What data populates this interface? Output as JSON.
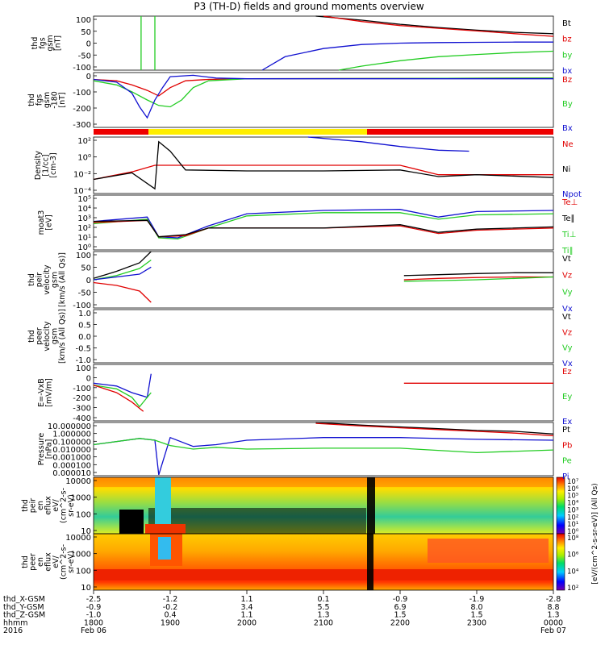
{
  "title": "P3 (TH-D) fields and ground moments overview",
  "colors": {
    "black": "#000000",
    "red": "#e00000",
    "green": "#22cc22",
    "blue": "#1010d0",
    "yellow": "#ffee00",
    "barred": "#ee0000"
  },
  "time_axis": {
    "label_lines": [
      "thd_X-GSM",
      "thd_Y-GSM",
      "thd_Z-GSM",
      "hhmm",
      "2016"
    ],
    "ticks": [
      {
        "t": "1800",
        "x": "-2.5",
        "y": "-0.9",
        "z": "-1.0",
        "date": "Feb 06"
      },
      {
        "t": "1900",
        "x": "-1.2",
        "y": "-0.2",
        "z": "0.4",
        "date": ""
      },
      {
        "t": "2000",
        "x": "1.1",
        "y": "3.4",
        "z": "1.1",
        "date": ""
      },
      {
        "t": "2100",
        "x": "0.1",
        "y": "5.5",
        "z": "1.3",
        "date": ""
      },
      {
        "t": "2200",
        "x": "-0.9",
        "y": "6.9",
        "z": "1.5",
        "date": ""
      },
      {
        "t": "2300",
        "x": "-1.9",
        "y": "8.0",
        "z": "1.5",
        "date": ""
      },
      {
        "t": "0000",
        "x": "-2.8",
        "y": "8.8",
        "z": "1.3",
        "date": "Feb 07"
      }
    ]
  },
  "chart_data": [
    {
      "type": "line",
      "id": "fgs_gsm",
      "ylabel": [
        "thd",
        "fgs",
        "gsm",
        "[nT]"
      ],
      "ylim": [
        -100,
        100
      ],
      "yticks": [
        "100",
        "50",
        "0",
        "-50",
        "-100"
      ],
      "legend": [
        {
          "name": "Bt",
          "color": "black"
        },
        {
          "name": "bz",
          "color": "red"
        },
        {
          "name": "by",
          "color": "green"
        },
        {
          "name": "bx",
          "color": "blue"
        }
      ],
      "series": [
        {
          "name": "Bt",
          "color": "black",
          "x": [
            20.9,
            21.5,
            22.0,
            22.5,
            23.0,
            23.5,
            24.0
          ],
          "y": [
            100,
            85,
            70,
            58,
            48,
            40,
            35
          ]
        },
        {
          "name": "bz",
          "color": "red",
          "x": [
            21.0,
            21.5,
            22.0,
            22.5,
            23.0,
            23.5,
            24.0
          ],
          "y": [
            100,
            80,
            65,
            55,
            45,
            35,
            25
          ]
        },
        {
          "name": "bx",
          "color": "blue",
          "x": [
            20.2,
            20.5,
            21.0,
            21.5,
            22.0,
            22.5,
            23.0,
            23.5,
            24.0
          ],
          "y": [
            -100,
            -50,
            -20,
            -5,
            0,
            2,
            3,
            4,
            4
          ]
        },
        {
          "name": "by",
          "color": "green",
          "x": [
            18.62,
            18.62,
            18.62
          ],
          "y": [
            -100,
            100,
            -100
          ]
        },
        {
          "name": "by2",
          "color": "green",
          "x": [
            18.8,
            18.8,
            18.8
          ],
          "y": [
            -100,
            100,
            -100
          ]
        },
        {
          "name": "by3",
          "color": "green",
          "x": [
            21.2,
            21.5,
            22.0,
            22.5,
            23.0,
            23.5,
            24.0
          ],
          "y": [
            -100,
            -85,
            -65,
            -50,
            -42,
            -35,
            -30
          ]
        }
      ]
    },
    {
      "type": "line",
      "id": "fgs_gsm_zoom",
      "ylabel": [
        "thd",
        "fgs",
        "gsm",
        "-180",
        "[nT]"
      ],
      "ylim": [
        -350,
        50
      ],
      "yticks": [
        "0",
        "-100",
        "-200",
        "-300"
      ],
      "legend": [
        {
          "name": "Bz",
          "color": "red"
        },
        {
          "name": "By",
          "color": "green"
        },
        {
          "name": "Bx",
          "color": "blue"
        }
      ],
      "series": [
        {
          "name": "Bz",
          "color": "red",
          "x": [
            18.0,
            18.3,
            18.5,
            18.7,
            18.85,
            19.0,
            19.2,
            19.5,
            20.0,
            24.0
          ],
          "y": [
            0,
            -10,
            -40,
            -80,
            -120,
            -60,
            -10,
            0,
            5,
            10
          ]
        },
        {
          "name": "By",
          "color": "green",
          "x": [
            18.0,
            18.3,
            18.5,
            18.7,
            18.85,
            19.0,
            19.15,
            19.3,
            19.5,
            20.0,
            24.0
          ],
          "y": [
            -10,
            -40,
            -90,
            -150,
            -190,
            -200,
            -150,
            -60,
            -10,
            5,
            10
          ]
        },
        {
          "name": "Bx",
          "color": "blue",
          "x": [
            18.0,
            18.3,
            18.5,
            18.6,
            18.7,
            18.8,
            18.9,
            19.0,
            19.3,
            19.6,
            20.0,
            24.0
          ],
          "y": [
            0,
            -20,
            -100,
            -200,
            -280,
            -150,
            -60,
            20,
            30,
            10,
            5,
            5
          ]
        }
      ]
    },
    {
      "type": "line",
      "id": "density",
      "ylabel": [
        "Density",
        "[1/cc]",
        "[cm-3]"
      ],
      "ylim": [
        -3,
        3
      ],
      "log": true,
      "yticks": [
        "10²",
        "10⁰",
        "10⁻²",
        "10⁻⁴"
      ],
      "legend": [
        {
          "name": "Ne",
          "color": "red"
        },
        {
          "name": "Ni",
          "color": "black"
        },
        {
          "name": "Npot",
          "color": "blue"
        }
      ],
      "series": [
        {
          "name": "Ne",
          "color": "red",
          "x": [
            18.0,
            18.5,
            18.8,
            19.0,
            20.0,
            21.0,
            22.0,
            22.5,
            23.0,
            24.0
          ],
          "y": [
            -1.5,
            -0.7,
            0,
            0,
            0,
            0,
            0,
            -1,
            -1,
            -1
          ]
        },
        {
          "name": "Ni",
          "color": "black",
          "x": [
            18.0,
            18.5,
            18.8,
            18.85,
            19.0,
            19.2,
            20.0,
            21.0,
            22.0,
            22.5,
            23.0,
            24.0
          ],
          "y": [
            -1.5,
            -0.8,
            -2.5,
            2.5,
            1.5,
            -0.5,
            -0.6,
            -0.6,
            -0.5,
            -1.2,
            -1.0,
            -1.3
          ]
        },
        {
          "name": "Npot",
          "color": "blue",
          "x": [
            20.8,
            21.5,
            22.0,
            22.5,
            22.9
          ],
          "y": [
            3,
            2.5,
            2.0,
            1.6,
            1.5
          ]
        }
      ]
    },
    {
      "type": "line",
      "id": "temperature",
      "ylabel": [
        "moat3",
        "[eV]"
      ],
      "ylim": [
        0,
        5
      ],
      "log": true,
      "yticks": [
        "10⁵",
        "10⁴",
        "10³",
        "10²",
        "10¹",
        "10⁰"
      ],
      "legend": [
        {
          "name": "Te⊥",
          "color": "red"
        },
        {
          "name": "Te∥",
          "color": "black"
        },
        {
          "name": "Ti⊥",
          "color": "green"
        },
        {
          "name": "Ti∥",
          "color": "green"
        }
      ],
      "series": [
        {
          "name": "Ti⊥",
          "color": "blue",
          "x": [
            18.0,
            18.7,
            18.85,
            19.1,
            19.5,
            20.0,
            21.0,
            22.0,
            22.5,
            23.0,
            24.0
          ],
          "y": [
            2.6,
            3.0,
            1.2,
            1.1,
            2.2,
            3.3,
            3.6,
            3.7,
            3.0,
            3.5,
            3.6
          ]
        },
        {
          "name": "Ti∥",
          "color": "green",
          "x": [
            18.0,
            18.7,
            18.85,
            19.1,
            19.5,
            20.0,
            21.0,
            22.0,
            22.5,
            23.0,
            24.0
          ],
          "y": [
            2.4,
            2.8,
            1.1,
            1.0,
            2.0,
            3.1,
            3.4,
            3.4,
            2.8,
            3.2,
            3.3
          ]
        },
        {
          "name": "Te⊥",
          "color": "red",
          "x": [
            18.0,
            18.7,
            18.85,
            19.2,
            19.5,
            20.0,
            21.0,
            22.0,
            22.5,
            23.0,
            24.0
          ],
          "y": [
            2.5,
            2.7,
            1.2,
            1.3,
            2.0,
            2.0,
            2.0,
            2.2,
            1.5,
            1.8,
            2.0
          ]
        },
        {
          "name": "Te∥",
          "color": "black",
          "x": [
            18.0,
            18.7,
            18.85,
            19.2,
            19.5,
            20.0,
            21.0,
            22.0,
            22.5,
            23.0,
            24.0
          ],
          "y": [
            2.6,
            2.7,
            1.2,
            1.4,
            2.0,
            2.0,
            2.0,
            2.3,
            1.6,
            1.9,
            2.1
          ]
        }
      ]
    },
    {
      "type": "line",
      "id": "peir_velocity",
      "ylabel": [
        "thd",
        "peir",
        "velocity",
        "gsm",
        "[km/s (All Qs)]"
      ],
      "ylim": [
        -100,
        100
      ],
      "yticks": [
        "100",
        "50",
        "0",
        "-50",
        "-100"
      ],
      "legend": [
        {
          "name": "Vt",
          "color": "black"
        },
        {
          "name": "Vz",
          "color": "red"
        },
        {
          "name": "Vy",
          "color": "green"
        },
        {
          "name": "Vx",
          "color": "blue"
        }
      ],
      "series": [
        {
          "name": "Vt",
          "color": "black",
          "x": [
            18.0,
            18.3,
            18.6,
            18.75
          ],
          "y": [
            5,
            30,
            60,
            100
          ]
        },
        {
          "name": "Vy",
          "color": "green",
          "x": [
            18.0,
            18.3,
            18.6,
            18.75
          ],
          "y": [
            0,
            15,
            40,
            70
          ]
        },
        {
          "name": "Vx",
          "color": "blue",
          "x": [
            18.0,
            18.3,
            18.6,
            18.75
          ],
          "y": [
            0,
            10,
            20,
            45
          ]
        },
        {
          "name": "Vz",
          "color": "red",
          "x": [
            18.0,
            18.3,
            18.6,
            18.75
          ],
          "y": [
            -10,
            -20,
            -40,
            -80
          ]
        },
        {
          "name": "Vt2",
          "color": "black",
          "x": [
            22.05,
            22.5,
            23.0,
            23.5,
            24.0
          ],
          "y": [
            15,
            18,
            22,
            25,
            25
          ]
        },
        {
          "name": "Vz2",
          "color": "red",
          "x": [
            22.05,
            22.5,
            23.0,
            23.5,
            24.0
          ],
          "y": [
            0,
            5,
            8,
            10,
            10
          ]
        },
        {
          "name": "Vy2",
          "color": "green",
          "x": [
            22.05,
            22.5,
            23.0,
            23.5,
            24.0
          ],
          "y": [
            -5,
            -3,
            0,
            5,
            10
          ]
        }
      ]
    },
    {
      "type": "line",
      "id": "peer_velocity",
      "ylabel": [
        "thd",
        "peer",
        "velocity",
        "gsm",
        "[km/s (All Qs)]"
      ],
      "ylim": [
        -1.0,
        1.0
      ],
      "yticks": [
        "1.0",
        "0.5",
        "0.0",
        "-0.5",
        "-1.0"
      ],
      "legend": [
        {
          "name": "Vt",
          "color": "black"
        },
        {
          "name": "Vz",
          "color": "red"
        },
        {
          "name": "Vy",
          "color": "green"
        },
        {
          "name": "Vx",
          "color": "blue"
        }
      ],
      "series": []
    },
    {
      "type": "line",
      "id": "efield",
      "ylabel": [
        "E=-VxB",
        "[mV/m]"
      ],
      "ylim": [
        -400,
        200
      ],
      "yticks": [
        "100",
        "0",
        "-100",
        "-200",
        "-300",
        "-400"
      ],
      "legend": [
        {
          "name": "Ez",
          "color": "red"
        },
        {
          "name": "Ey",
          "color": "green"
        },
        {
          "name": "Ex",
          "color": "blue"
        }
      ],
      "series": [
        {
          "name": "Ex",
          "color": "blue",
          "x": [
            18.0,
            18.3,
            18.5,
            18.7,
            18.75
          ],
          "y": [
            0,
            -30,
            -100,
            -150,
            100
          ]
        },
        {
          "name": "Ey",
          "color": "green",
          "x": [
            18.0,
            18.3,
            18.5,
            18.6,
            18.75
          ],
          "y": [
            -20,
            -60,
            -150,
            -250,
            -100
          ]
        },
        {
          "name": "Ez",
          "color": "red",
          "x": [
            18.0,
            18.3,
            18.5,
            18.65
          ],
          "y": [
            -20,
            -100,
            -200,
            -300
          ]
        },
        {
          "name": "Ez2",
          "color": "red",
          "x": [
            22.05,
            24.0
          ],
          "y": [
            0,
            0
          ]
        }
      ]
    },
    {
      "type": "line",
      "id": "pressure",
      "ylabel": [
        "Pressure",
        "[nPa]"
      ],
      "ylim": [
        -5,
        1
      ],
      "log": true,
      "yticks": [
        "10.000000",
        "1.000000",
        "0.100000",
        "0.010000",
        "0.001000",
        "0.000100",
        "0.000010"
      ],
      "legend": [
        {
          "name": "Pt",
          "color": "black"
        },
        {
          "name": "Pb",
          "color": "red"
        },
        {
          "name": "Pe",
          "color": "green"
        },
        {
          "name": "Pi",
          "color": "blue"
        }
      ],
      "series": [
        {
          "name": "Pt",
          "color": "black",
          "x": [
            20.9,
            21.5,
            22.0,
            22.5,
            23.0,
            23.5,
            24.0
          ],
          "y": [
            1,
            0.7,
            0.5,
            0.3,
            0.1,
            0,
            -0.3
          ]
        },
        {
          "name": "Pb",
          "color": "red",
          "x": [
            20.9,
            21.5,
            22.0,
            22.5,
            23.0,
            23.5,
            24.0
          ],
          "y": [
            0.9,
            0.6,
            0.4,
            0.2,
            0,
            -0.2,
            -0.5
          ]
        },
        {
          "name": "Pi",
          "color": "blue",
          "x": [
            18.0,
            18.6,
            18.8,
            18.85,
            19.0,
            19.3,
            19.6,
            20.0,
            21.0,
            22.0,
            23.0,
            24.0
          ],
          "y": [
            -1.5,
            -0.8,
            -1.0,
            -4.9,
            -0.7,
            -1.7,
            -1.5,
            -1.0,
            -0.7,
            -0.7,
            -0.9,
            -1.0
          ]
        },
        {
          "name": "Pe",
          "color": "green",
          "x": [
            18.0,
            18.6,
            18.8,
            19.0,
            19.3,
            19.6,
            20.0,
            21.0,
            22.0,
            23.0,
            24.0
          ],
          "y": [
            -1.5,
            -0.8,
            -1.0,
            -1.6,
            -2.0,
            -1.8,
            -2.0,
            -1.9,
            -1.9,
            -2.4,
            -2.1
          ]
        }
      ]
    },
    {
      "type": "heatmap",
      "id": "peir_eflux",
      "ylabel": [
        "thd",
        "peir",
        "en",
        "eflux",
        "eV/",
        "(cm^2-s-",
        "sr-eV)"
      ],
      "yticks": [
        "10000",
        "1000",
        "100",
        "10"
      ],
      "colorbar_ticks": [
        "10⁷",
        "10⁶",
        "10⁵",
        "10⁴",
        "10³",
        "10²",
        "10¹",
        "10⁰"
      ],
      "colorbar_label": "[eV/(cm^2-s-sr-eV)] (All Qs)"
    },
    {
      "type": "heatmap",
      "id": "peer_eflux",
      "ylabel": [
        "thd",
        "peer",
        "en",
        "eflux",
        "eV/",
        "(cm^2-s-",
        "sr-eV)"
      ],
      "yticks": [
        "10000",
        "1000",
        "100",
        "10"
      ],
      "colorbar_ticks": [
        "10⁸",
        "10⁶",
        "10⁴",
        "10²"
      ],
      "colorbar_label": "[eV/(cm^2-s-sr-eV)] (All Qs)"
    }
  ]
}
